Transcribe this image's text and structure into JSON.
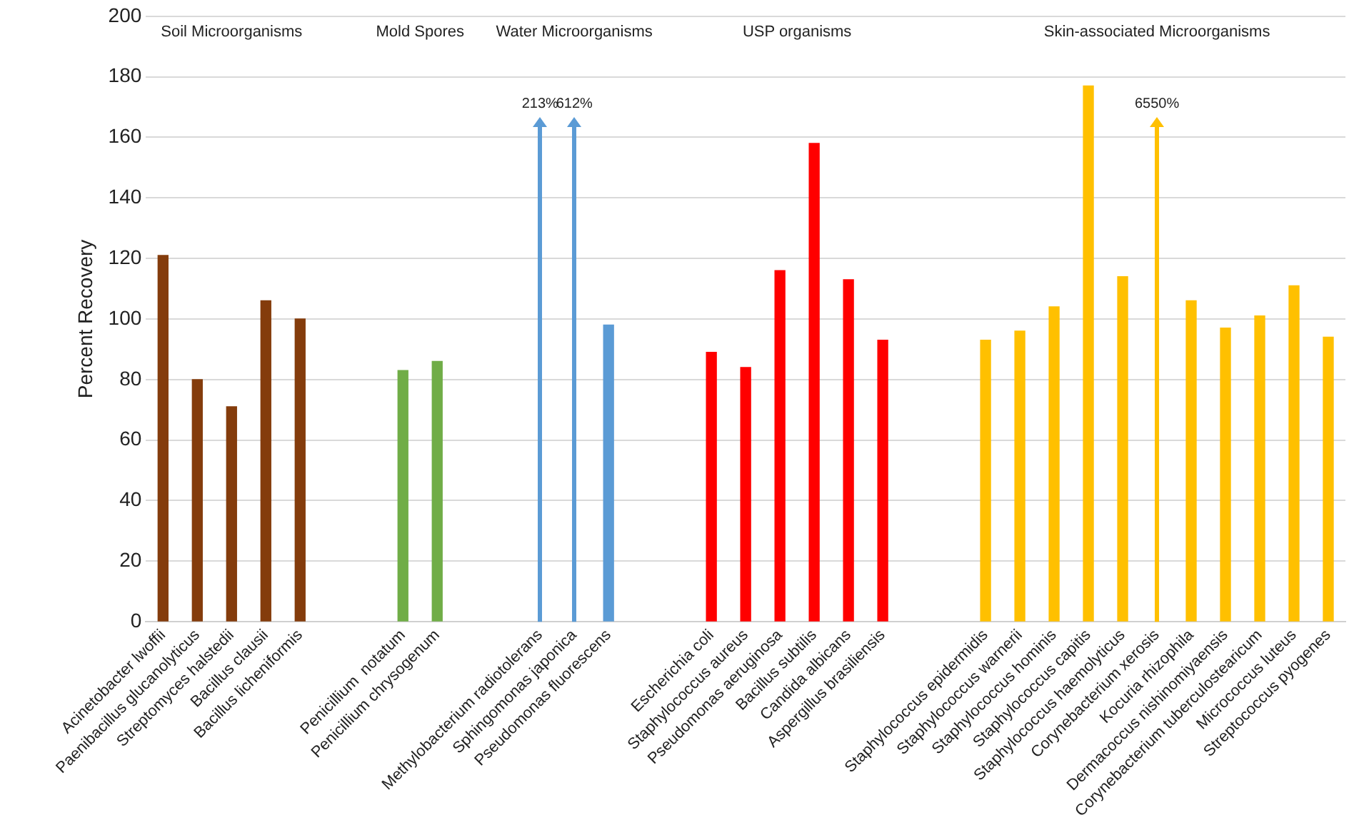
{
  "chart_data": {
    "type": "bar",
    "ylabel": "Percent Recovery",
    "categories": [
      "Acinetobacter lwoffii",
      "Paenibacillus glucanolyticus",
      "Streptomyces halstedii",
      "Bacillus clausii",
      "Bacillus licheniformis",
      null,
      null,
      "Penicillium  notatum",
      "Penicillium chrysogenum",
      null,
      null,
      "Methylobacterium radiotolerans",
      "Sphingomonas japonica",
      "Pseudomonas fluorescens",
      null,
      null,
      "Escherichia coli",
      "Staphylococcus aureus",
      "Pseudomonas aeruginosa",
      "Bacillus subtilis",
      "Candida albicans",
      "Aspergillus brasiliensis",
      null,
      null,
      "Staphylococcus epidermidis",
      "Staphylococcus warnerii",
      "Staphylococcus hominis",
      "Staphylococcus capitis",
      "Staphylococcus haemolyticus",
      "Corynebacterium xerosis",
      "Kocuria rhizophila",
      "Dermacoccus nishinomiyaensis",
      "Corynebacterium tuberculostearicum",
      "Micrococcus luteus",
      "Streptococcus pyogenes"
    ],
    "values": [
      121,
      80,
      71,
      106,
      100,
      null,
      null,
      83,
      86,
      null,
      null,
      null,
      null,
      98,
      null,
      null,
      89,
      84,
      116,
      158,
      113,
      93,
      null,
      null,
      93,
      96,
      104,
      177,
      114,
      null,
      106,
      97,
      101,
      111,
      94
    ],
    "value_labels": [
      null,
      null,
      null,
      null,
      null,
      null,
      null,
      null,
      null,
      null,
      null,
      "213%",
      "612%",
      null,
      null,
      null,
      null,
      null,
      null,
      null,
      null,
      null,
      null,
      null,
      null,
      null,
      null,
      null,
      null,
      "6550%",
      null,
      null,
      null,
      null,
      null
    ],
    "colors": [
      "#843c0c",
      "#843c0c",
      "#843c0c",
      "#843c0c",
      "#843c0c",
      null,
      null,
      "#70ad47",
      "#70ad47",
      null,
      null,
      "#5b9bd5",
      "#5b9bd5",
      "#5b9bd5",
      null,
      null,
      "#ff0000",
      "#ff0000",
      "#ff0000",
      "#ff0000",
      "#ff0000",
      "#ff0000",
      null,
      null,
      "#ffc000",
      "#ffc000",
      "#ffc000",
      "#ffc000",
      "#ffc000",
      "#ffc000",
      "#ffc000",
      "#ffc000",
      "#ffc000",
      "#ffc000",
      "#ffc000"
    ],
    "ylim": [
      0,
      200
    ],
    "yticks": [
      0,
      20,
      40,
      60,
      80,
      100,
      120,
      140,
      160,
      180,
      200
    ],
    "grid": "y",
    "legend": false,
    "annotations": [
      "Soil Microorganisms",
      "Mold Spores",
      "Water Microorganisms",
      "USP organisms",
      "Skin-associated Microorganisms"
    ]
  }
}
